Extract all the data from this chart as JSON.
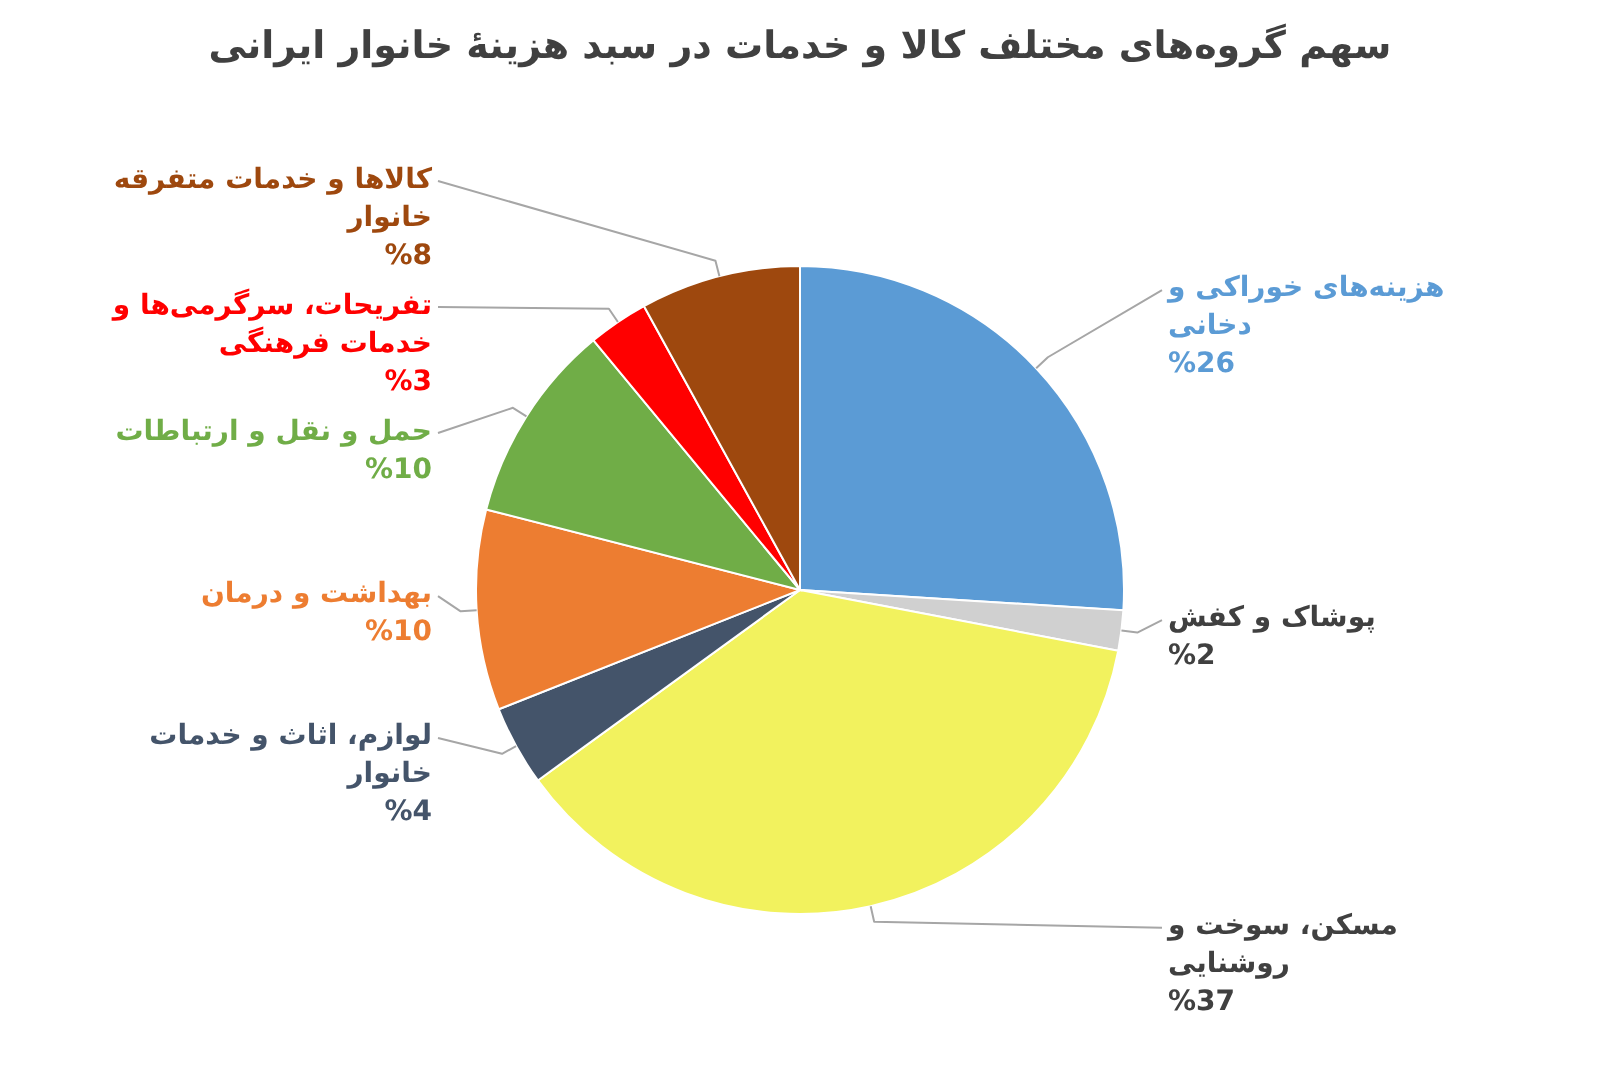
{
  "chart_data": {
    "type": "pie",
    "title": "سهم گروه‌های مختلف کالا و خدمات در سبد هزینهٔ خانوار ایرانی",
    "categories": [
      "هزینه‌های خوراکی و دخانی",
      "پوشاک و کفش",
      "مسکن، سوخت و روشنایی",
      "لوازم، اثاث و خدمات خانوار",
      "بهداشت و درمان",
      "حمل و نقل و ارتباطات",
      "تفریحات، سرگرمی‌ها و خدمات فرهنگی",
      "کالاها و خدمات متفرقه خانوار"
    ],
    "values": [
      26,
      2,
      37,
      4,
      10,
      10,
      3,
      8
    ],
    "colors": [
      "#5b9bd5",
      "#d0d0d0",
      "#f2f25e",
      "#44546a",
      "#ed7d31",
      "#70ad47",
      "#ff0000",
      "#9e480e"
    ],
    "value_labels": [
      "%26",
      "%2",
      "%37",
      "%4",
      "%10",
      "%10",
      "%3",
      "%8"
    ]
  }
}
